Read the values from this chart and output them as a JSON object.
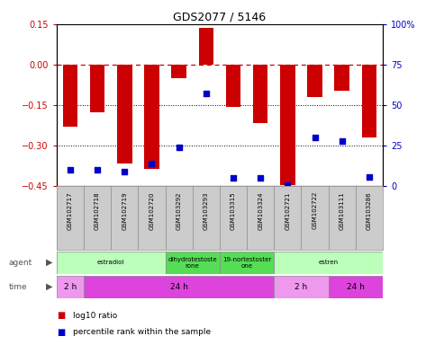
{
  "title": "GDS2077 / 5146",
  "samples": [
    "GSM102717",
    "GSM102718",
    "GSM102719",
    "GSM102720",
    "GSM103292",
    "GSM103293",
    "GSM103315",
    "GSM103324",
    "GSM102721",
    "GSM102722",
    "GSM103111",
    "GSM103286"
  ],
  "log10_ratio": [
    -0.23,
    -0.175,
    -0.365,
    -0.385,
    -0.05,
    0.135,
    -0.155,
    -0.215,
    -0.445,
    -0.12,
    -0.095,
    -0.27
  ],
  "percentile_rank": [
    10,
    10,
    9,
    14,
    24,
    57,
    5,
    5,
    1,
    30,
    28,
    6
  ],
  "bar_color": "#cc0000",
  "dot_color": "#0000cc",
  "ylim_left": [
    -0.45,
    0.15
  ],
  "ylim_right": [
    0,
    100
  ],
  "yticks_left": [
    0.15,
    0,
    -0.15,
    -0.3,
    -0.45
  ],
  "yticks_right": [
    100,
    75,
    50,
    25,
    0
  ],
  "hline_y": 0,
  "hline_color": "#cc0000",
  "dotted_lines": [
    -0.15,
    -0.3
  ],
  "agent_groups": [
    {
      "label": "estradiol",
      "start": 0,
      "end": 4,
      "color": "#bbffbb"
    },
    {
      "label": "dihydrotestoste\nrone",
      "start": 4,
      "end": 6,
      "color": "#55dd55"
    },
    {
      "label": "19-nortestoster\none",
      "start": 6,
      "end": 8,
      "color": "#55dd55"
    },
    {
      "label": "estren",
      "start": 8,
      "end": 12,
      "color": "#bbffbb"
    }
  ],
  "time_groups": [
    {
      "label": "2 h",
      "start": 0,
      "end": 1,
      "color": "#ee99ee"
    },
    {
      "label": "24 h",
      "start": 1,
      "end": 8,
      "color": "#dd44dd"
    },
    {
      "label": "2 h",
      "start": 8,
      "end": 10,
      "color": "#ee99ee"
    },
    {
      "label": "24 h",
      "start": 10,
      "end": 12,
      "color": "#dd44dd"
    }
  ],
  "legend_items": [
    {
      "color": "#cc0000",
      "label": "log10 ratio"
    },
    {
      "color": "#0000cc",
      "label": "percentile rank within the sample"
    }
  ],
  "bar_width": 0.55,
  "sample_bg": "#cccccc",
  "sample_border": "#888888"
}
